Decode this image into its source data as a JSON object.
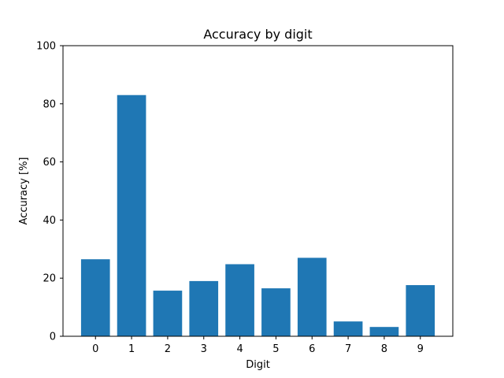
{
  "chart_data": {
    "type": "bar",
    "title": "Accuracy by digit",
    "xlabel": "Digit",
    "ylabel": "Accuracy [%]",
    "categories": [
      "0",
      "1",
      "2",
      "3",
      "4",
      "5",
      "6",
      "7",
      "8",
      "9"
    ],
    "values": [
      26.5,
      83.0,
      15.7,
      19.0,
      24.8,
      16.5,
      27.0,
      5.1,
      3.2,
      17.6
    ],
    "ylim": [
      0,
      100
    ],
    "yticks": [
      "0",
      "20",
      "40",
      "60",
      "80",
      "100"
    ],
    "grid": false,
    "legend": "none",
    "colors": {
      "bar": "#1f77b4",
      "axis": "#000000",
      "background": "#ffffff"
    }
  }
}
